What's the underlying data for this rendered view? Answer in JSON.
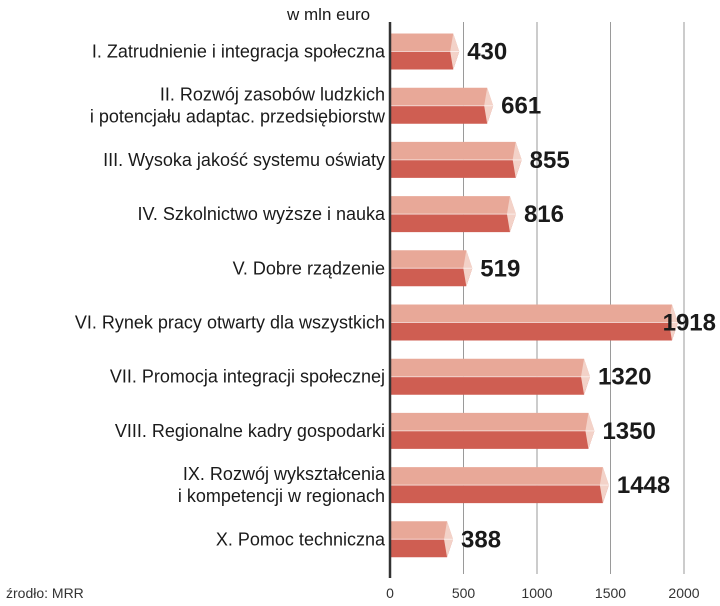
{
  "chart_data": {
    "type": "bar",
    "orientation": "horizontal",
    "unit_label": "w mln euro",
    "source": "źrodło: MRR",
    "categories": [
      [
        "I. Zatrudnienie i integracja społeczna"
      ],
      [
        "II. Rozwój zasobów ludzkich",
        "i potencjału adaptac. przedsiębiorstw"
      ],
      [
        "III. Wysoka jakość systemu oświaty"
      ],
      [
        "IV. Szkolnictwo wyższe i nauka"
      ],
      [
        "V. Dobre rządzenie"
      ],
      [
        "VI. Rynek pracy otwarty dla wszystkich"
      ],
      [
        "VII. Promocja integracji społecznej"
      ],
      [
        "VIII. Regionalne kadry gospodarki"
      ],
      [
        "IX. Rozwój wykształcenia",
        "i kompetencji w regionach"
      ],
      [
        "X. Pomoc techniczna"
      ]
    ],
    "values": [
      430,
      661,
      855,
      816,
      519,
      1918,
      1320,
      1350,
      1448,
      388
    ],
    "value_labels": [
      "430",
      "661",
      "855",
      "816",
      "519",
      "1918",
      "1320",
      "1350",
      "1448",
      "388"
    ],
    "xlim": [
      0,
      2000
    ],
    "xticks": [
      0,
      500,
      1000,
      1500,
      2000
    ],
    "xtick_labels": [
      "0",
      "500",
      "1000",
      "1500",
      "2000"
    ],
    "grid": true,
    "colors": {
      "bar_top": "#e8a898",
      "bar_bottom": "#cf5e52",
      "bar_end": "#f3d2c8",
      "text": "#1a1a1a",
      "grid": "#9a9a9a",
      "axis": "#333333"
    }
  }
}
